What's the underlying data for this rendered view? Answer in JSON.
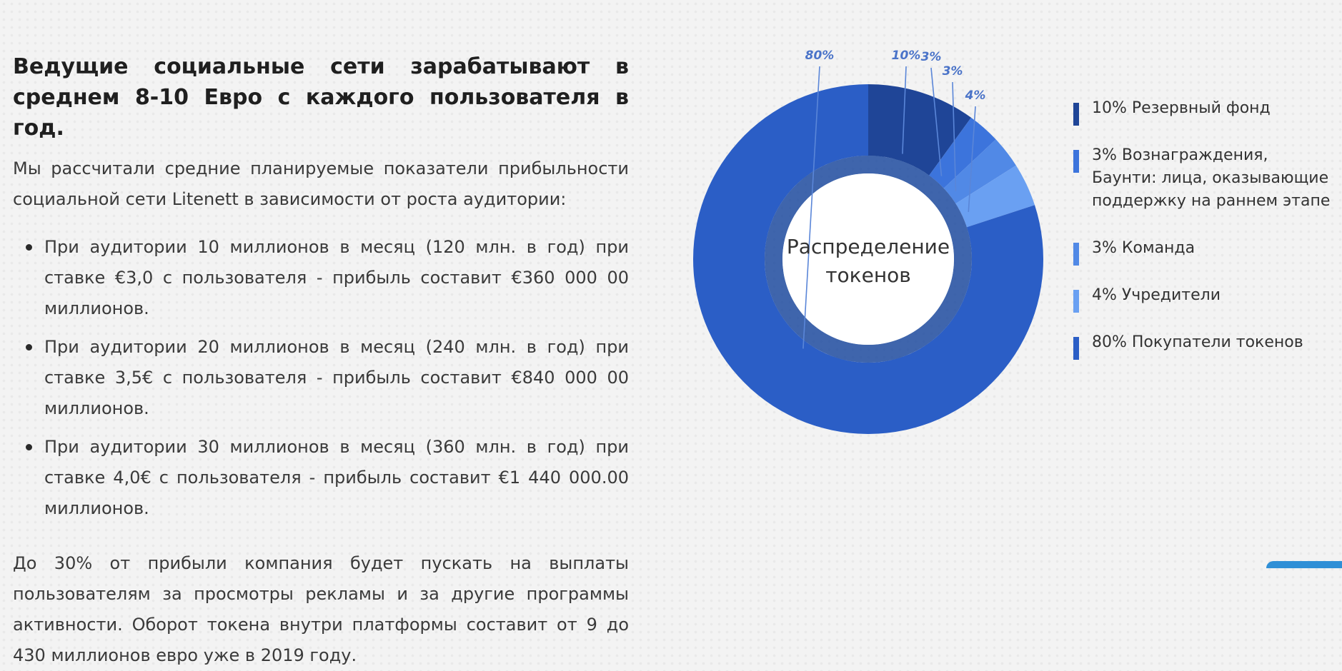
{
  "content": {
    "headline": "Ведущие социальные сети зарабатывают в среднем 8-10 Евро с каждого пользователя в год.",
    "intro": "Мы рассчитали средние планируемые показатели прибыльности социальной сети Litenett в зависимости от роста аудитории:",
    "bullets": [
      "При аудитории 10 миллионов в месяц (120 млн. в год) при ставке €3,0 с пользователя - прибыль составит €360 000 00 миллионов.",
      "При аудитории 20 миллионов в месяц (240 млн. в год) при ставке 3,5€ с пользователя - прибыль составит €840 000 00 миллионов.",
      "При аудитории 30 миллионов в месяц (360 млн. в год) при ставке 4,0€ с пользователя - прибыль составит €1 440 000.00 миллионов."
    ],
    "outro": "До 30% от прибыли компания будет пускать на выплаты пользователям за просмотры рекламы и за другие программы активности. Оборот токена внутри платформы составит от 9 до 430 миллионов евро уже в 2019 году."
  },
  "chart_data": {
    "type": "pie",
    "title": "Распределение токенов",
    "slices": [
      {
        "label": "10% Резервный фонд",
        "value": 10,
        "display": "10%",
        "color": "#1f4597"
      },
      {
        "label": "3% Вознаграждения, Баунти: лица, оказывающие поддержку на раннем этапе",
        "value": 3,
        "display": "3%",
        "color": "#3c74dc"
      },
      {
        "label": "3% Команда",
        "value": 3,
        "display": "3%",
        "color": "#5189e6"
      },
      {
        "label": "4% Учредители",
        "value": 4,
        "display": "4%",
        "color": "#6aa0f2"
      },
      {
        "label": "80% Покупатели токенов",
        "value": 80,
        "display": "80%",
        "color": "#2b5ec6"
      }
    ],
    "legend_position": "right"
  }
}
